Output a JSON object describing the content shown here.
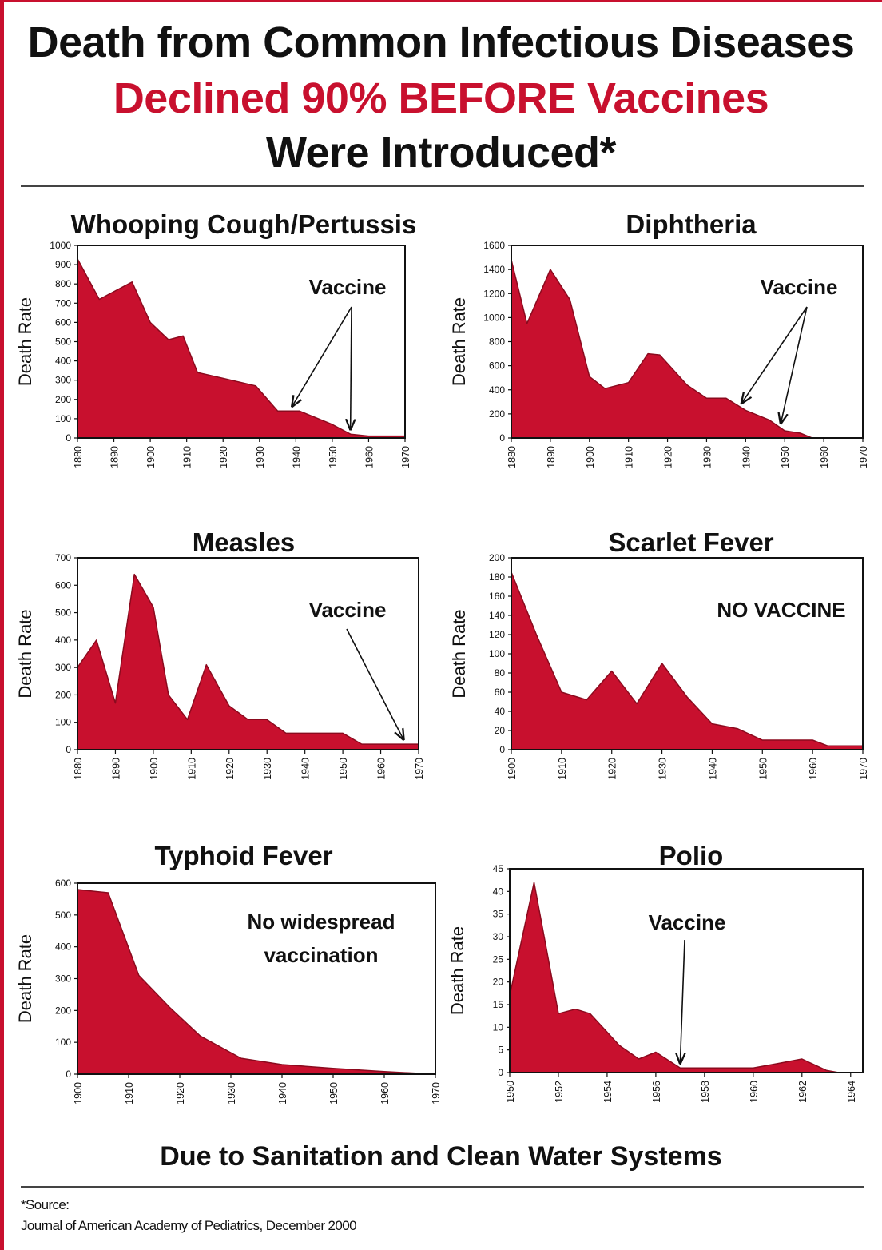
{
  "header": {
    "line1": "Death from Common Infectious Diseases",
    "line2": "Declined 90% BEFORE Vaccines",
    "line3": "Were Introduced*"
  },
  "footer": {
    "text": "Due to Sanitation and Clean Water Systems",
    "source_label": "*Source:",
    "source_text": "Journal of American Academy of Pediatrics, December 2000"
  },
  "colors": {
    "fill": "#c8102e",
    "stroke": "#8b0a1e",
    "accent": "#c8102e"
  },
  "chart_data": [
    {
      "type": "area",
      "title": "Whooping Cough/Pertussis",
      "ylabel": "Death Rate",
      "xlim": [
        1880,
        1970
      ],
      "ylim": [
        0,
        1000
      ],
      "xticks": [
        1880,
        1890,
        1900,
        1910,
        1920,
        1930,
        1940,
        1950,
        1960,
        1970
      ],
      "yticks": [
        0,
        100,
        200,
        300,
        400,
        500,
        600,
        700,
        800,
        900,
        1000
      ],
      "x": [
        1880,
        1886,
        1895,
        1900,
        1905,
        1909,
        1913,
        1920,
        1929,
        1935,
        1941,
        1950,
        1955,
        1960,
        1970
      ],
      "y": [
        930,
        720,
        810,
        600,
        510,
        530,
        340,
        310,
        270,
        140,
        140,
        70,
        20,
        10,
        10
      ],
      "annotation": "Vaccine",
      "arrow_targets_x": [
        1939,
        1955
      ]
    },
    {
      "type": "area",
      "title": "Diphtheria",
      "ylabel": "Death Rate",
      "xlim": [
        1880,
        1970
      ],
      "ylim": [
        0,
        1600
      ],
      "xticks": [
        1880,
        1890,
        1900,
        1910,
        1920,
        1930,
        1940,
        1950,
        1960,
        1970
      ],
      "yticks": [
        0,
        200,
        400,
        600,
        800,
        1000,
        1200,
        1400,
        1600
      ],
      "x": [
        1880,
        1884,
        1890,
        1895,
        1900,
        1904,
        1910,
        1915,
        1918,
        1925,
        1930,
        1935,
        1940,
        1946,
        1950,
        1954,
        1957,
        1970
      ],
      "y": [
        1480,
        950,
        1400,
        1150,
        510,
        410,
        460,
        700,
        690,
        440,
        330,
        330,
        230,
        150,
        60,
        40,
        0,
        0
      ],
      "annotation": "Vaccine",
      "arrow_targets_x": [
        1939,
        1949
      ]
    },
    {
      "type": "area",
      "title": "Measles",
      "ylabel": "Death Rate",
      "xlim": [
        1880,
        1970
      ],
      "ylim": [
        0,
        700
      ],
      "xticks": [
        1880,
        1890,
        1900,
        1910,
        1920,
        1930,
        1940,
        1950,
        1960,
        1970
      ],
      "yticks": [
        0,
        100,
        200,
        300,
        400,
        500,
        600,
        700
      ],
      "x": [
        1880,
        1885,
        1890,
        1895,
        1900,
        1904,
        1909,
        1914,
        1920,
        1925,
        1930,
        1935,
        1940,
        1945,
        1950,
        1955,
        1970
      ],
      "y": [
        300,
        400,
        170,
        640,
        520,
        200,
        110,
        310,
        160,
        110,
        110,
        60,
        60,
        60,
        60,
        20,
        20
      ],
      "annotation": "Vaccine",
      "arrow_targets_x": [
        1966
      ]
    },
    {
      "type": "area",
      "title": "Scarlet Fever",
      "ylabel": "Death Rate",
      "xlim": [
        1900,
        1970
      ],
      "ylim": [
        0,
        200
      ],
      "xticks": [
        1900,
        1910,
        1920,
        1930,
        1940,
        1950,
        1960,
        1970
      ],
      "yticks": [
        0,
        20,
        40,
        60,
        80,
        100,
        120,
        140,
        160,
        180,
        200
      ],
      "x": [
        1900,
        1905,
        1910,
        1915,
        1920,
        1925,
        1930,
        1935,
        1940,
        1945,
        1950,
        1955,
        1960,
        1963,
        1970
      ],
      "y": [
        185,
        120,
        60,
        52,
        82,
        48,
        90,
        55,
        27,
        22,
        10,
        10,
        10,
        4,
        4
      ],
      "annotation": "NO VACCINE"
    },
    {
      "type": "area",
      "title": "Typhoid Fever",
      "ylabel": "Death Rate",
      "xlim": [
        1900,
        1970
      ],
      "ylim": [
        0,
        600
      ],
      "xticks": [
        1900,
        1910,
        1920,
        1930,
        1940,
        1950,
        1960,
        1970
      ],
      "yticks": [
        0,
        100,
        200,
        300,
        400,
        500,
        600
      ],
      "x": [
        1900,
        1906,
        1912,
        1918,
        1924,
        1932,
        1940,
        1950,
        1960,
        1970
      ],
      "y": [
        580,
        570,
        310,
        210,
        120,
        50,
        30,
        18,
        8,
        0
      ],
      "annotation": "No widespread vaccination"
    },
    {
      "type": "area",
      "title": "Polio",
      "ylabel": "Death Rate",
      "xlim": [
        1950,
        1964.5
      ],
      "ylim": [
        0,
        45
      ],
      "xticks": [
        1950,
        1952,
        1954,
        1956,
        1958,
        1960,
        1962,
        1964
      ],
      "yticks": [
        0,
        5,
        10,
        15,
        20,
        25,
        30,
        35,
        40,
        45
      ],
      "x": [
        1950,
        1951,
        1952,
        1952.7,
        1953.3,
        1954.5,
        1955.3,
        1956,
        1957,
        1958,
        1959,
        1960,
        1961,
        1962,
        1963,
        1963.5,
        1964.5
      ],
      "y": [
        17,
        42,
        13,
        14,
        13,
        6,
        3,
        4.5,
        1,
        1,
        1,
        1,
        2,
        3,
        0.5,
        0,
        0
      ],
      "annotation": "Vaccine",
      "arrow_targets_x": [
        1957
      ]
    }
  ]
}
